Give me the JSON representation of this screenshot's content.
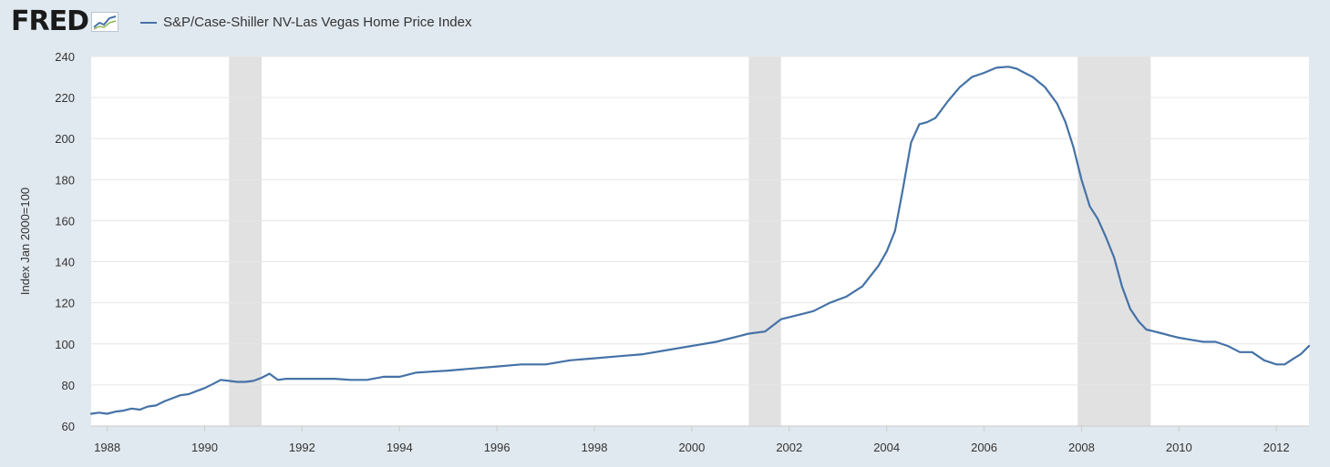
{
  "header": {
    "logo_text": "FRED",
    "logo_icon": "chart-line-icon",
    "series_label": "S&P/Case-Shiller NV-Las Vegas Home Price Index"
  },
  "colors": {
    "series": "#4572a7",
    "recession": "#e1e1e1",
    "grid": "#e6e6e6",
    "background": "#e1e9f0",
    "plot_background": "#ffffff"
  },
  "chart_data": {
    "type": "line",
    "title": "",
    "xlabel": "",
    "ylabel": "Index Jan 2000=100",
    "xlim": [
      1987.67,
      2012.67
    ],
    "ylim": [
      60,
      240
    ],
    "y_ticks": [
      60,
      80,
      100,
      120,
      140,
      160,
      180,
      200,
      220,
      240
    ],
    "x_ticks": [
      1988,
      1990,
      1992,
      1994,
      1996,
      1998,
      2000,
      2002,
      2004,
      2006,
      2008,
      2010,
      2012
    ],
    "grid": true,
    "legend": "top-left",
    "recessions": [
      [
        1990.5,
        1991.17
      ],
      [
        2001.17,
        2001.83
      ],
      [
        2007.92,
        2009.42
      ]
    ],
    "series": [
      {
        "name": "S&P/Case-Shiller NV-Las Vegas Home Price Index",
        "x": [
          1987.67,
          1987.83,
          1988.0,
          1988.17,
          1988.33,
          1988.5,
          1988.67,
          1988.83,
          1989.0,
          1989.17,
          1989.33,
          1989.5,
          1989.67,
          1989.83,
          1990.0,
          1990.17,
          1990.33,
          1990.5,
          1990.67,
          1990.83,
          1991.0,
          1991.17,
          1991.33,
          1991.5,
          1991.67,
          1991.83,
          1992.0,
          1992.33,
          1992.67,
          1993.0,
          1993.33,
          1993.67,
          1994.0,
          1994.33,
          1994.67,
          1995.0,
          1995.5,
          1996.0,
          1996.5,
          1997.0,
          1997.5,
          1998.0,
          1998.5,
          1999.0,
          1999.5,
          2000.0,
          2000.5,
          2001.0,
          2001.17,
          2001.5,
          2001.83,
          2002.17,
          2002.5,
          2002.83,
          2003.17,
          2003.5,
          2003.83,
          2004.0,
          2004.17,
          2004.33,
          2004.5,
          2004.67,
          2004.83,
          2005.0,
          2005.25,
          2005.5,
          2005.75,
          2006.0,
          2006.25,
          2006.5,
          2006.67,
          2006.83,
          2007.0,
          2007.25,
          2007.5,
          2007.67,
          2007.83,
          2008.0,
          2008.17,
          2008.33,
          2008.5,
          2008.67,
          2008.83,
          2009.0,
          2009.17,
          2009.33,
          2009.5,
          2009.67,
          2009.83,
          2010.0,
          2010.25,
          2010.5,
          2010.75,
          2011.0,
          2011.25,
          2011.5,
          2011.75,
          2012.0,
          2012.17,
          2012.33,
          2012.5,
          2012.67
        ],
        "y": [
          66,
          66.5,
          66,
          67,
          67.5,
          68.5,
          68,
          69.5,
          70,
          72,
          73.5,
          75,
          75.5,
          77,
          78.5,
          80.5,
          82.5,
          82,
          81.5,
          81.5,
          82,
          83.5,
          85.5,
          82.5,
          83,
          83,
          83,
          83,
          83,
          82.5,
          82.5,
          84,
          84,
          86,
          86.5,
          87,
          88,
          89,
          90,
          90,
          92,
          93,
          94,
          95,
          97,
          99,
          101,
          104,
          105,
          106,
          112,
          114,
          116,
          120,
          123,
          128,
          138,
          145,
          155,
          175,
          198,
          207,
          208,
          210,
          218,
          225,
          230,
          232,
          234.5,
          235,
          234,
          232,
          230,
          225,
          217,
          208,
          196,
          180,
          167,
          161,
          152,
          142,
          128,
          117,
          111,
          107,
          106,
          105,
          104,
          103,
          102,
          101,
          101,
          99,
          96,
          96,
          92,
          90,
          90,
          92.5,
          95,
          99
        ]
      }
    ]
  }
}
